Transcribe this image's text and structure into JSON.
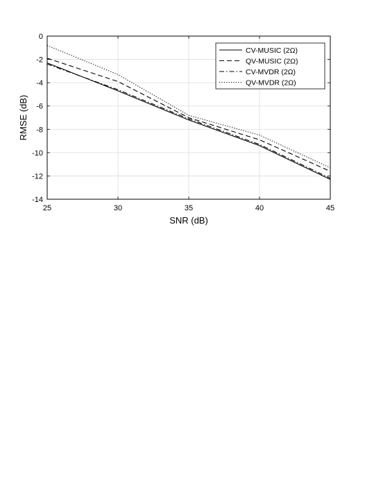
{
  "chart_data": {
    "type": "line",
    "xlabel": "SNR (dB)",
    "ylabel": "RMSE (dB)",
    "xlim": [
      25,
      45
    ],
    "ylim": [
      -14,
      0
    ],
    "xticks": [
      25,
      30,
      35,
      40,
      45
    ],
    "yticks": [
      0,
      -2,
      -4,
      -6,
      -8,
      -10,
      -12,
      -14
    ],
    "grid": true,
    "legend_position": "top-right",
    "x": [
      25,
      30,
      35,
      40,
      45
    ],
    "series": [
      {
        "name": "CV-MUSIC (2Ω)",
        "style": "solid",
        "values": [
          -2.3,
          -4.7,
          -7.2,
          -9.4,
          -12.3
        ]
      },
      {
        "name": "QV-MUSIC (2Ω)",
        "style": "dashed",
        "values": [
          -1.9,
          -3.9,
          -7.0,
          -8.9,
          -11.6
        ]
      },
      {
        "name": "CV-MVDR (2Ω)",
        "style": "dashdot",
        "values": [
          -2.4,
          -4.6,
          -7.1,
          -9.3,
          -12.2
        ]
      },
      {
        "name": "QV-MVDR (2Ω)",
        "style": "dotted",
        "values": [
          -0.8,
          -3.3,
          -6.8,
          -8.5,
          -11.3
        ]
      }
    ]
  }
}
